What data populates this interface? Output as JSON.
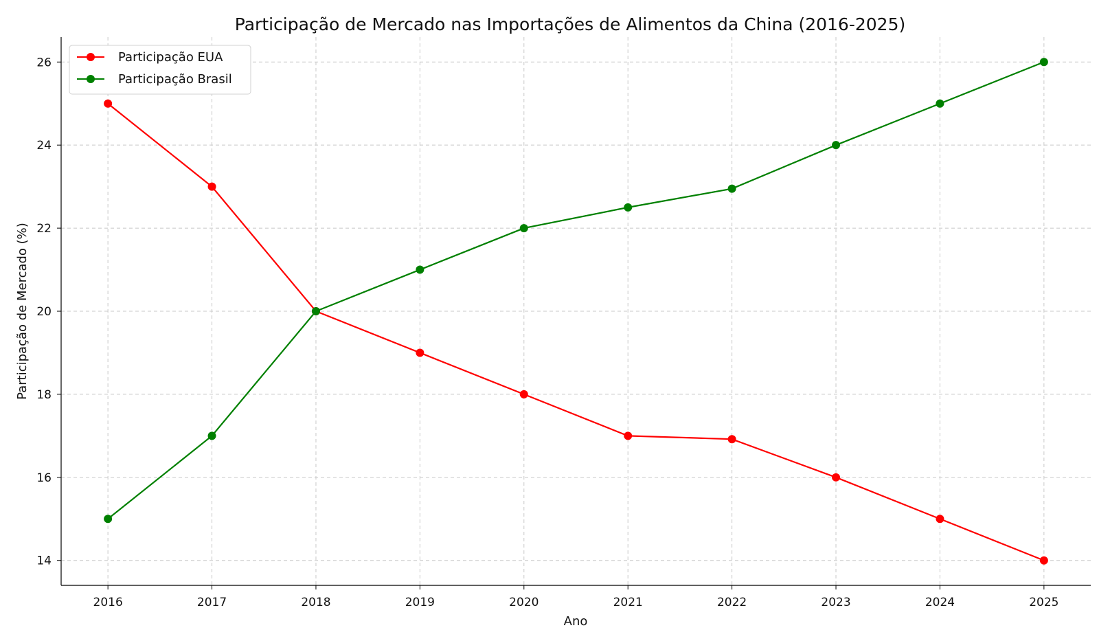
{
  "chart_data": {
    "type": "line",
    "title": "Participação de Mercado nas Importações de Alimentos da China (2016-2025)",
    "xlabel": "Ano",
    "ylabel": "Participação de Mercado (%)",
    "x": [
      2016,
      2017,
      2018,
      2019,
      2020,
      2021,
      2022,
      2023,
      2024,
      2025
    ],
    "x_tick_labels": [
      "2016",
      "2017",
      "2018",
      "2019",
      "2020",
      "2021",
      "2022",
      "2023",
      "2024",
      "2025"
    ],
    "y_ticks": [
      14,
      16,
      18,
      20,
      22,
      24,
      26
    ],
    "y_tick_labels": [
      "14",
      "16",
      "18",
      "20",
      "22",
      "24",
      "26"
    ],
    "xlim": [
      2015.55,
      2025.45
    ],
    "ylim": [
      13.4,
      26.6
    ],
    "grid": true,
    "legend_position": "upper-left",
    "series": [
      {
        "name": "Participação EUA",
        "color": "#ff0000",
        "marker": "circle",
        "values": [
          25,
          23,
          20,
          19,
          18,
          17,
          16.92,
          16,
          15,
          14
        ]
      },
      {
        "name": "Participação Brasil",
        "color": "#008000",
        "marker": "circle",
        "values": [
          15,
          17,
          20,
          21,
          22,
          22.5,
          22.95,
          24,
          25,
          26
        ]
      }
    ]
  }
}
